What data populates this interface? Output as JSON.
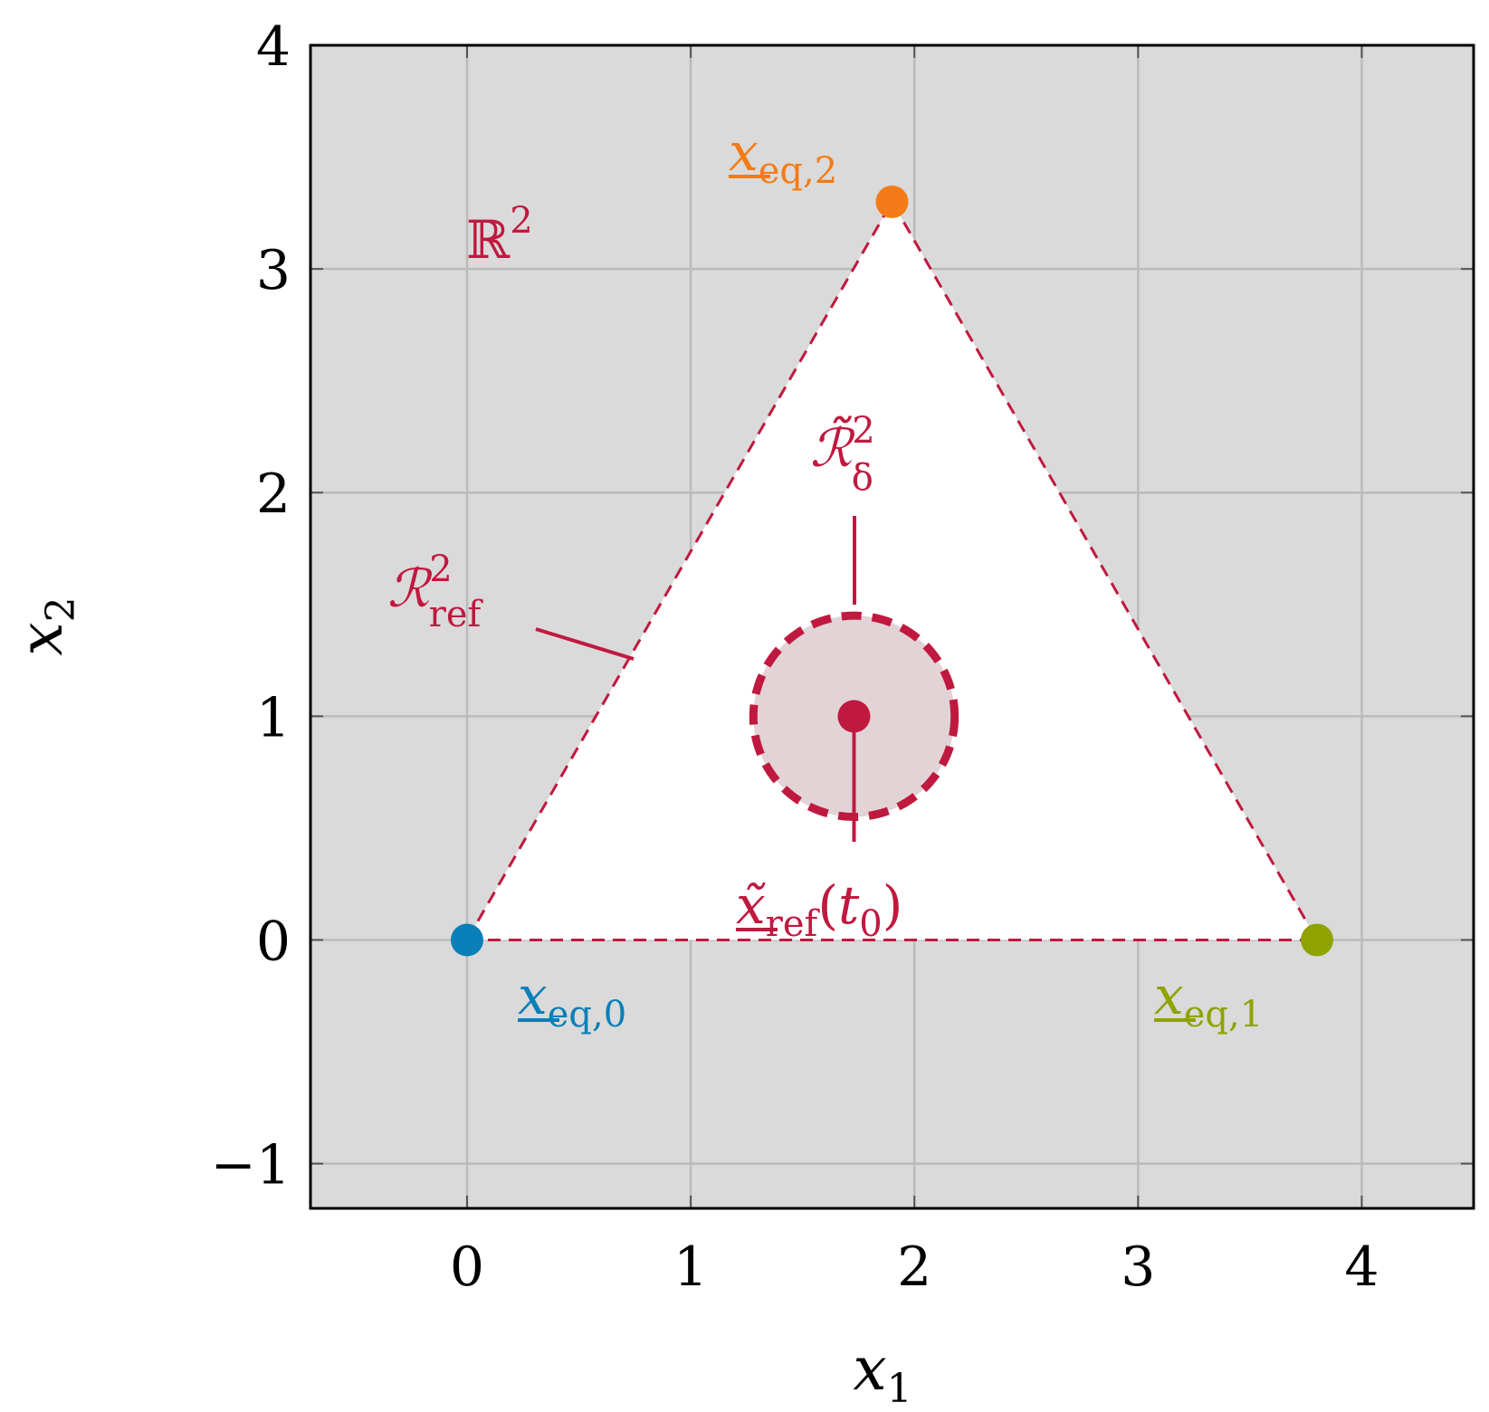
{
  "chart_data": {
    "type": "scatter",
    "xlabel": "x1",
    "ylabel": "x2",
    "xlim": [
      -0.7,
      4.5
    ],
    "ylim": [
      -1.2,
      4.0
    ],
    "x_ticks": [
      0,
      1,
      2,
      3,
      4
    ],
    "y_ticks": [
      -1,
      0,
      1,
      2,
      3,
      4
    ],
    "x_tick_labels": [
      "0",
      "1",
      "2",
      "3",
      "4"
    ],
    "y_tick_labels": [
      "−1",
      "0",
      "1",
      "2",
      "3",
      "4"
    ],
    "grid": true,
    "background_color": "#dadada",
    "region_color": "#c0193f",
    "equilibria": [
      {
        "name": "x_eq,0",
        "x": 0.0,
        "y": 0.0,
        "color": "#0a7fb8"
      },
      {
        "name": "x_eq,1",
        "x": 3.8,
        "y": 0.0,
        "color": "#8ea300"
      },
      {
        "name": "x_eq,2",
        "x": 1.9,
        "y": 3.3,
        "color": "#f47b17"
      }
    ],
    "reference_point": {
      "name": "x̃_ref(t0)",
      "x": 1.73,
      "y": 1.0,
      "color": "#c0193f"
    },
    "delta_ball": {
      "center_x": 1.73,
      "center_y": 1.0,
      "radius": 0.45,
      "fill": "#e2d3d7"
    },
    "annotations": {
      "space": {
        "base": "ℝ",
        "sup": "2"
      },
      "region_ref": {
        "base": "ℛ",
        "sup": "2",
        "sub": "ref"
      },
      "region_delta": {
        "base": "ℛ̃",
        "sup": "2",
        "sub": "δ"
      },
      "eq0": {
        "base": "x",
        "sub": "eq,0"
      },
      "eq1": {
        "base": "x",
        "sub": "eq,1"
      },
      "eq2": {
        "base": "x",
        "sub": "eq,2"
      },
      "ref": {
        "base": "x̃",
        "sub": "ref",
        "paren_open": "(",
        "arg": "t",
        "arg_sub": "0",
        "paren_close": ")"
      }
    }
  }
}
